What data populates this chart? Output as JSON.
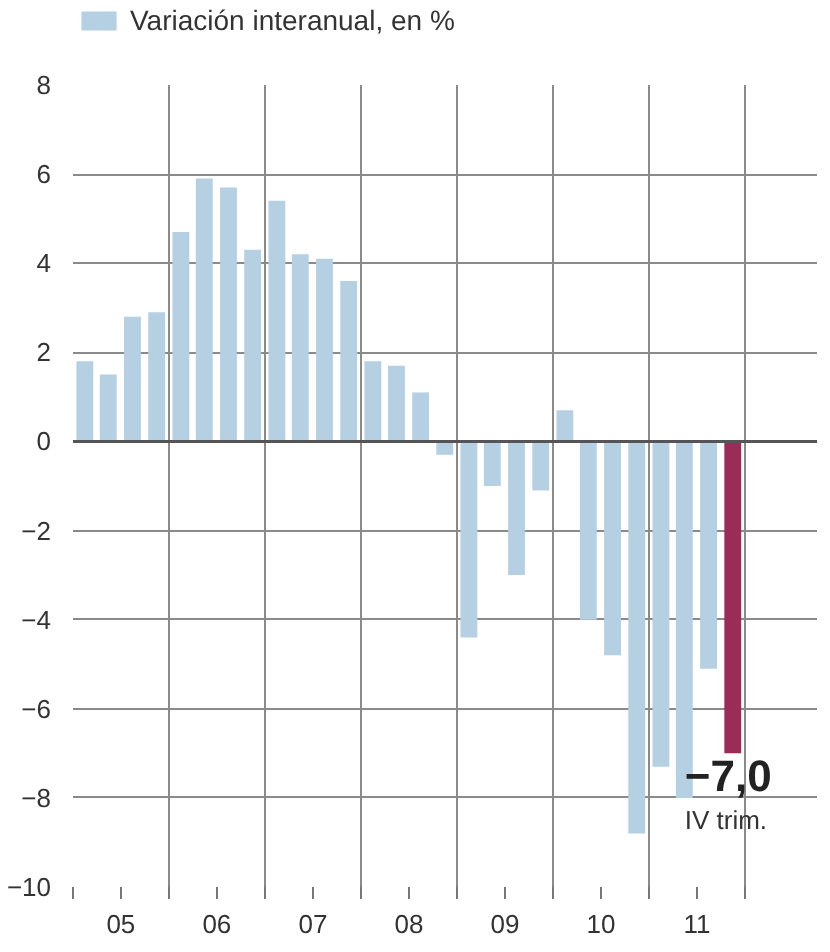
{
  "chart_data": {
    "type": "bar",
    "x": [
      "2005-02-15",
      "2005-05-15",
      "2005-08-15",
      "2005-11-15",
      "2006-02-15",
      "2006-05-15",
      "2006-08-15",
      "2006-11-15",
      "2007-02-15",
      "2007-05-15",
      "2007-08-15",
      "2007-11-15",
      "2008-02-15",
      "2008-05-15",
      "2008-08-15",
      "2008-11-15",
      "2009-02-15",
      "2009-05-15",
      "2009-08-15",
      "2009-11-15",
      "2010-02-15",
      "2010-05-15",
      "2010-08-15",
      "2010-11-15",
      "2011-02-15",
      "2011-05-15",
      "2011-08-15",
      "2011-11-15"
    ],
    "series": [
      {
        "name": "Variación interanual, en %",
        "color": "#b5d0e3",
        "values": [
          1.8,
          1.5,
          2.8,
          2.9,
          4.7,
          5.9,
          5.7,
          4.3,
          5.4,
          4.2,
          4.1,
          3.6,
          1.8,
          1.7,
          1.1,
          -0.3,
          -4.4,
          -1.0,
          -3.0,
          -1.1,
          0.7,
          -4.0,
          -4.8,
          -8.8,
          -7.3,
          -8.0,
          -5.1,
          -7.0
        ],
        "colors": [
          "#b5d0e3",
          "#b5d0e3",
          "#b5d0e3",
          "#b5d0e3",
          "#b5d0e3",
          "#b5d0e3",
          "#b5d0e3",
          "#b5d0e3",
          "#b5d0e3",
          "#b5d0e3",
          "#b5d0e3",
          "#b5d0e3",
          "#b5d0e3",
          "#b5d0e3",
          "#b5d0e3",
          "#b5d0e3",
          "#b5d0e3",
          "#b5d0e3",
          "#b5d0e3",
          "#b5d0e3",
          "#b5d0e3",
          "#b5d0e3",
          "#b5d0e3",
          "#b5d0e3",
          "#b5d0e3",
          "#b5d0e3",
          "#b5d0e3",
          "#9b2c57"
        ],
        "value_labels": [
          null,
          null,
          null,
          null,
          null,
          null,
          null,
          null,
          null,
          null,
          null,
          null,
          null,
          null,
          null,
          null,
          null,
          null,
          null,
          null,
          null,
          null,
          null,
          null,
          null,
          null,
          null,
          "−7,0"
        ]
      }
    ],
    "annotations": [
      "IV trim."
    ],
    "xlim": [
      "2005-01-01",
      "2012-10-01"
    ],
    "xticks": [
      {
        "value": "2005-01-01",
        "label": null
      },
      {
        "value": "2005-07-02",
        "label": "05"
      },
      {
        "value": "2006-01-01",
        "label": null
      },
      {
        "value": "2006-07-02",
        "label": "06"
      },
      {
        "value": "2007-01-01",
        "label": null
      },
      {
        "value": "2007-07-02",
        "label": "07"
      },
      {
        "value": "2008-01-01",
        "label": null
      },
      {
        "value": "2008-07-02",
        "label": "08"
      },
      {
        "value": "2009-01-01",
        "label": null
      },
      {
        "value": "2009-07-02",
        "label": "09"
      },
      {
        "value": "2010-01-01",
        "label": null
      },
      {
        "value": "2010-07-02",
        "label": "10"
      },
      {
        "value": "2011-01-01",
        "label": null
      },
      {
        "value": "2011-07-02",
        "label": "11"
      },
      {
        "value": "2012-01-01",
        "label": null
      }
    ],
    "ylim": [
      -10,
      8
    ],
    "yticks": [
      {
        "value": -10,
        "label": "−10"
      },
      {
        "value": -8,
        "label": "−8"
      },
      {
        "value": -6,
        "label": "−6"
      },
      {
        "value": -4,
        "label": "−4"
      },
      {
        "value": -2,
        "label": "−2"
      },
      0,
      2,
      4,
      6,
      8
    ],
    "ref_lines": [
      {
        "axis": "y",
        "value": 0,
        "color": "#555555"
      }
    ],
    "grid": true,
    "legend": "top left"
  }
}
